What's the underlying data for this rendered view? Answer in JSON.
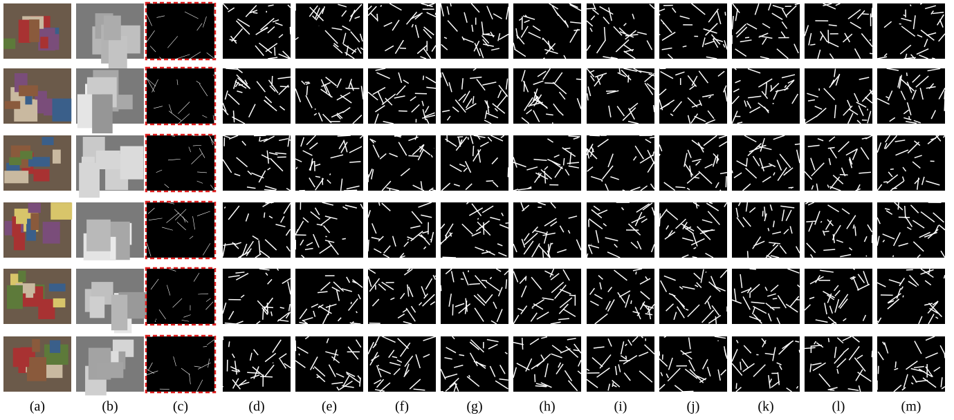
{
  "columns": [
    "(a)",
    "(b)",
    "(c)",
    "(d)",
    "(e)",
    "(f)",
    "(g)",
    "(h)",
    "(i)",
    "(j)",
    "(k)",
    "(l)",
    "(m)"
  ]
}
